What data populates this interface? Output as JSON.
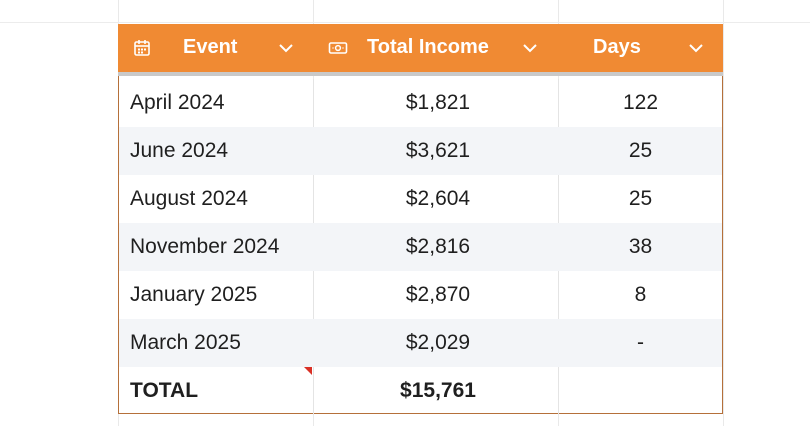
{
  "colors": {
    "header_bg": "#f08a33",
    "header_text": "#ffffff",
    "row_alt": "#f3f5f8",
    "border": "#b5703a",
    "comment_flag": "#d93025"
  },
  "table": {
    "columns": [
      {
        "label": "Event",
        "icon": "calendar-icon"
      },
      {
        "label": "Total Income",
        "icon": "cash-icon"
      },
      {
        "label": "Days",
        "icon": ""
      }
    ],
    "rows": [
      {
        "event": "April 2024",
        "income": "$1,821",
        "days": "122"
      },
      {
        "event": "June 2024",
        "income": "$3,621",
        "days": "25"
      },
      {
        "event": "August 2024",
        "income": "$2,604",
        "days": "25"
      },
      {
        "event": "November 2024",
        "income": "$2,816",
        "days": "38"
      },
      {
        "event": "January 2025",
        "income": "$2,870",
        "days": "8"
      },
      {
        "event": "March 2025",
        "income": "$2,029",
        "days": "-"
      }
    ],
    "total": {
      "label": "TOTAL",
      "income": "$15,761",
      "days": ""
    }
  }
}
